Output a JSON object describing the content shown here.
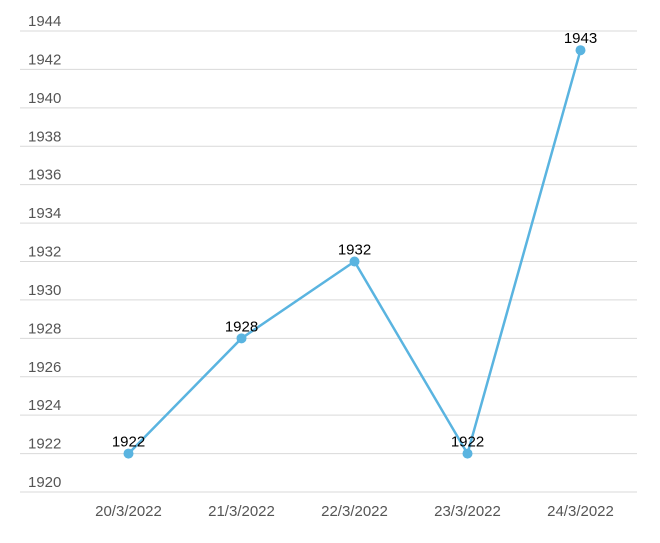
{
  "chart_data": {
    "type": "line",
    "categories": [
      "20/3/2022",
      "21/3/2022",
      "22/3/2022",
      "23/3/2022",
      "24/3/2022"
    ],
    "series": [
      {
        "color": "#5ab4e0",
        "values": [
          1922,
          1928,
          1932,
          1922,
          1943
        ]
      }
    ],
    "ylim": [
      1920,
      1944
    ],
    "yticks": [
      1920,
      1922,
      1924,
      1926,
      1928,
      1930,
      1932,
      1934,
      1936,
      1938,
      1940,
      1942,
      1944
    ],
    "grid": true
  }
}
